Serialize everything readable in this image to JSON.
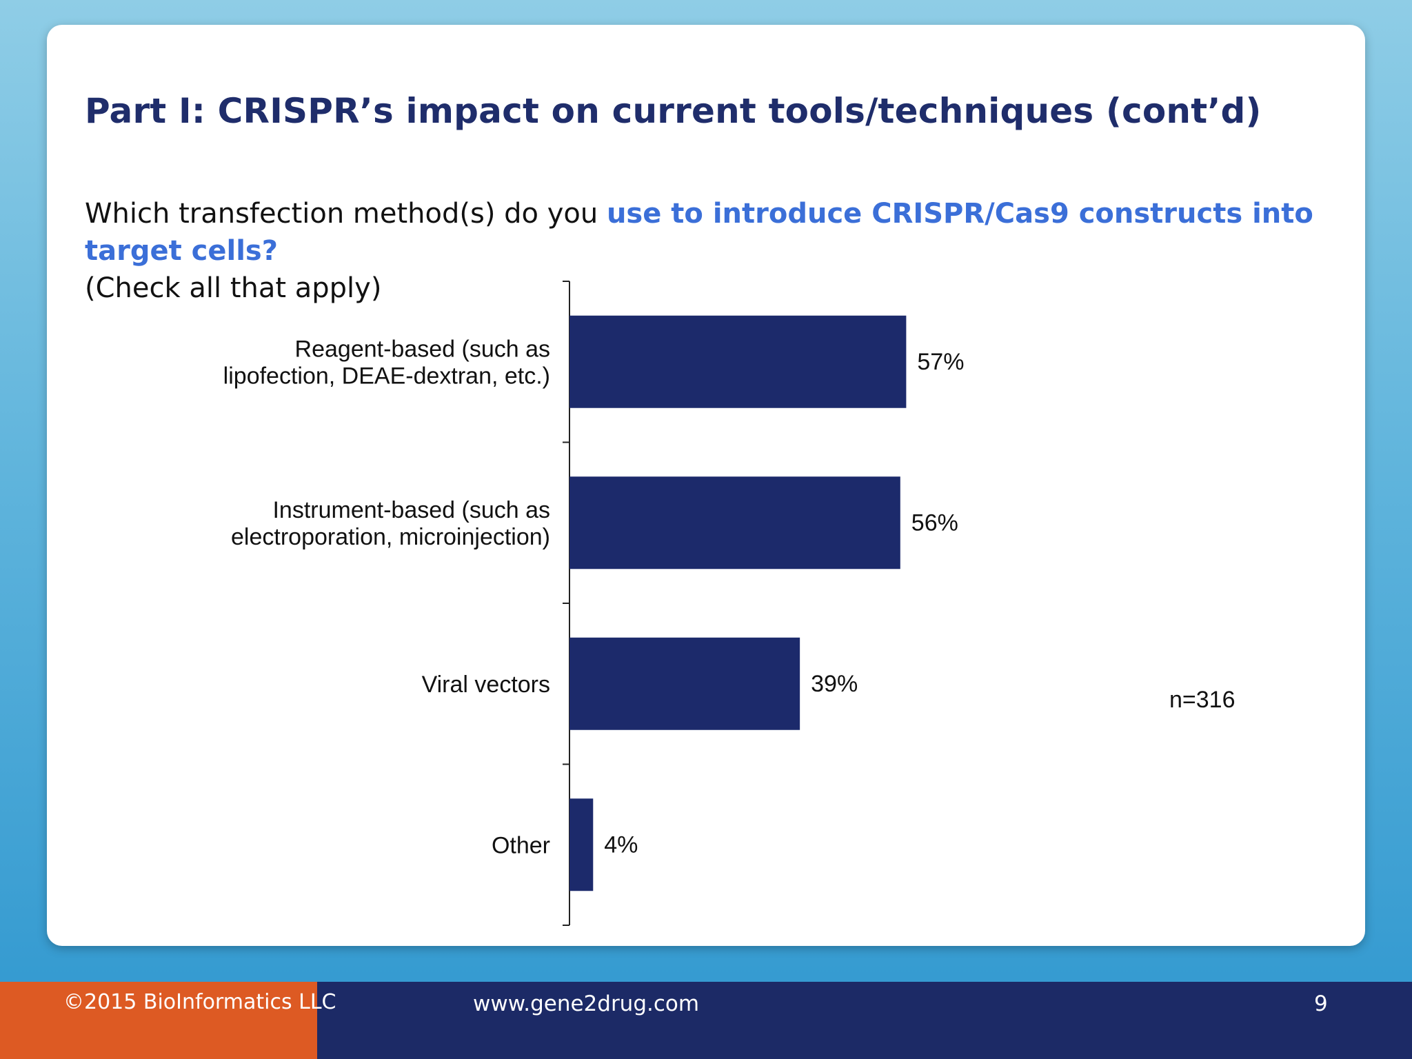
{
  "slide": {
    "title": "Part I: CRISPR’s impact on current tools/techniques (cont’d)",
    "question_part1": "Which transfection method(s) do you ",
    "question_highlight": "use to introduce CRISPR/Cas9 constructs into target cells?",
    "question_part2": "(Check all that apply)",
    "sample_size": "n=316"
  },
  "chart_data": {
    "type": "bar",
    "orientation": "horizontal",
    "categories": [
      [
        "Reagent-based (such as",
        "lipofection, DEAE-dextran, etc.)"
      ],
      [
        "Instrument-based (such as",
        "electroporation, microinjection)"
      ],
      [
        "Viral vectors"
      ],
      [
        "Other"
      ]
    ],
    "values": [
      57,
      56,
      39,
      4
    ],
    "value_labels": [
      "57%",
      "56%",
      "39%",
      "4%"
    ],
    "unit": "%",
    "xlim": [
      0,
      100
    ],
    "bar_color": "#1c2a6b",
    "grid": false,
    "legend": "none"
  },
  "footer": {
    "copyright": "©2015 BioInformatics LLC",
    "website": "www.gene2drug.com",
    "page_number": "9"
  },
  "colors": {
    "title": "#1f2d6b",
    "highlight": "#3b6fd8",
    "footer_left": "#dd5a23",
    "footer_right": "#1c2a66"
  }
}
